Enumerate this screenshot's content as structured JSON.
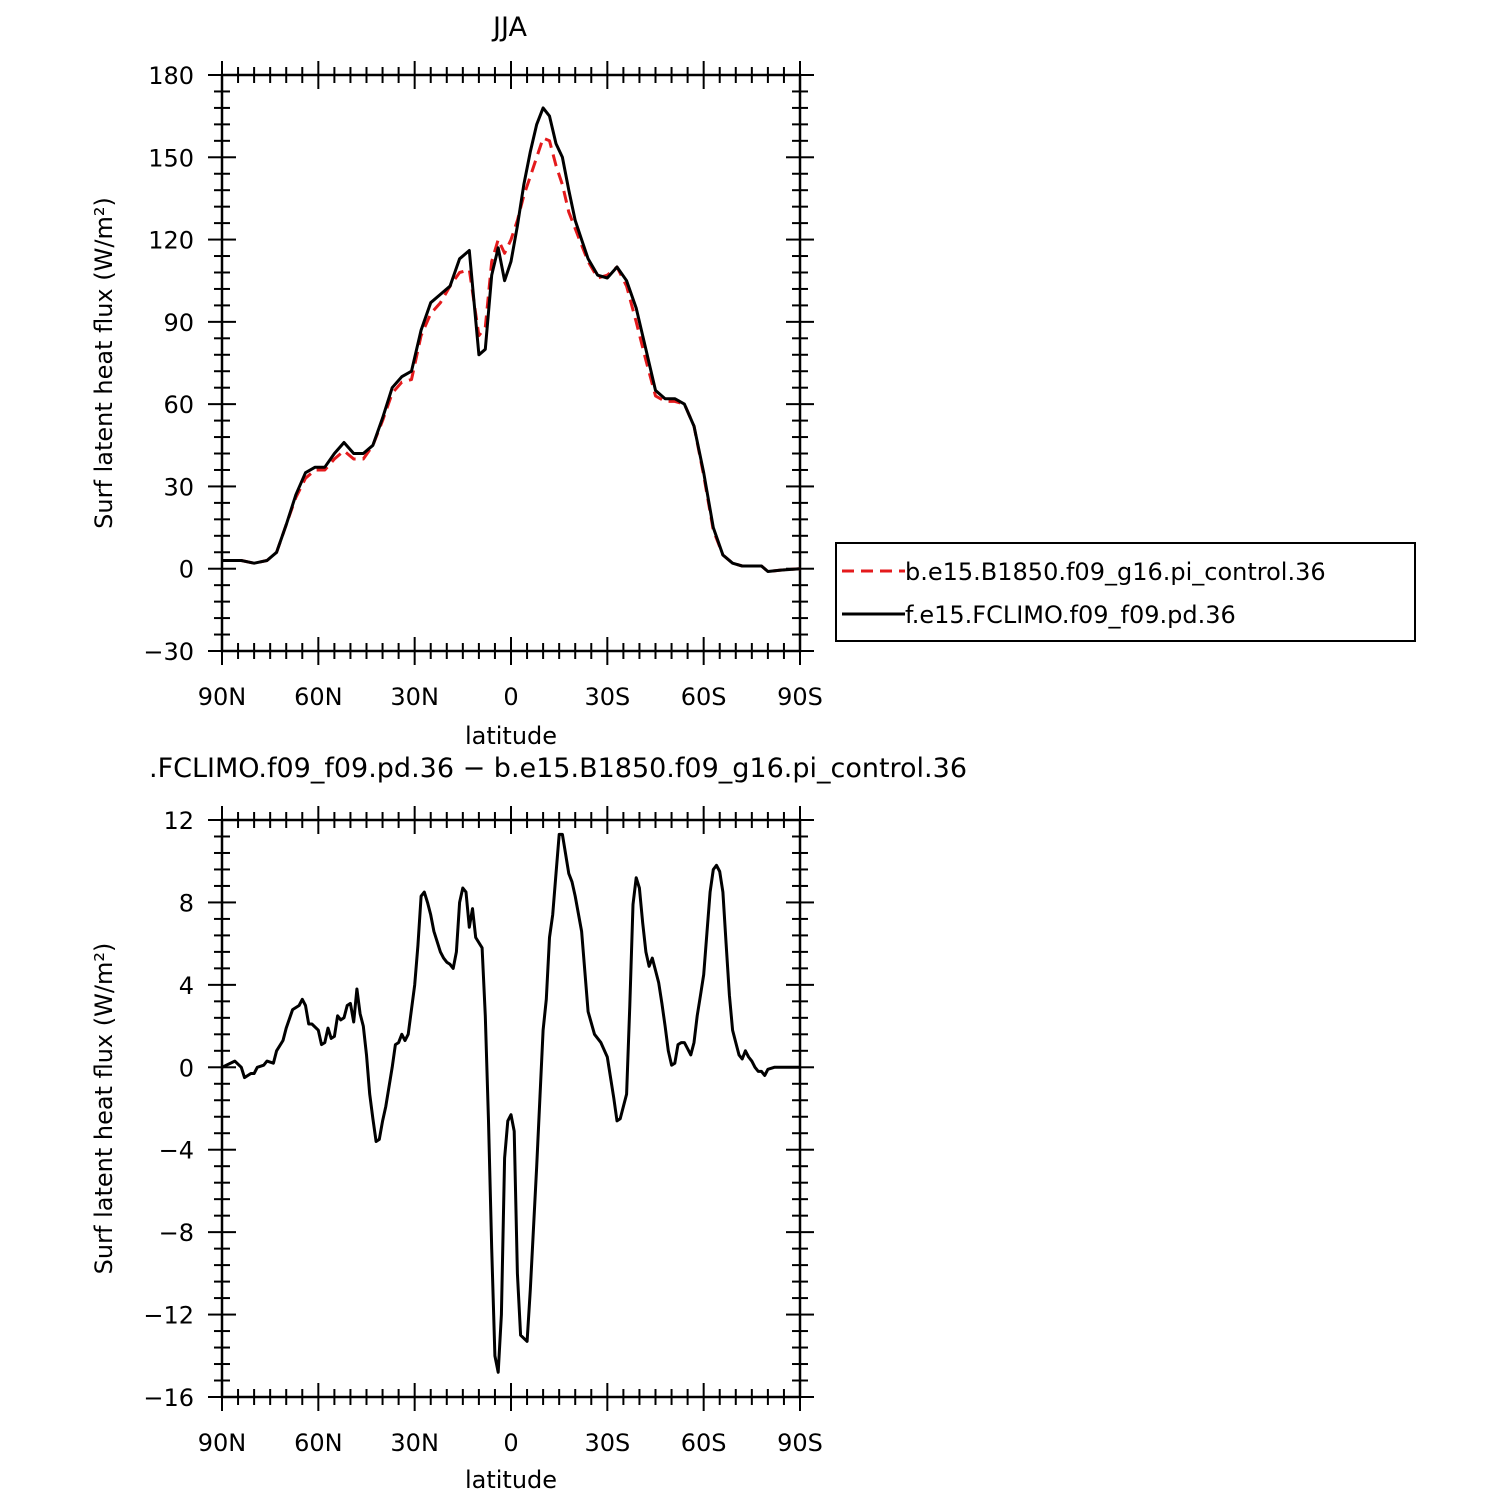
{
  "chart_data": [
    {
      "type": "line",
      "title": "JJA",
      "xlabel": "latitude",
      "ylabel": "Surf latent heat flux (W/m²)",
      "xlim": [
        90,
        -90
      ],
      "ylim": [
        -30,
        180
      ],
      "x_ticks": [
        90,
        60,
        30,
        0,
        -30,
        -60,
        -90
      ],
      "x_tick_labels": [
        "90N",
        "60N",
        "30N",
        "0",
        "30S",
        "60S",
        "90S"
      ],
      "y_ticks": [
        -30,
        0,
        30,
        60,
        90,
        120,
        150,
        180
      ],
      "y_tick_labels": [
        "−30",
        "0",
        "30",
        "60",
        "90",
        "120",
        "150",
        "180"
      ],
      "grid": false,
      "legend": {
        "placement": "outside-right"
      },
      "series": [
        {
          "name": "b.e15.B1850.f09_g16.pi_control.36",
          "color": "#e41a1c",
          "style": "dashed",
          "x": [
            90,
            84,
            80,
            76,
            73,
            70,
            67,
            64,
            61,
            58,
            55,
            52,
            49,
            46,
            43,
            40,
            37,
            34,
            31,
            28,
            25,
            22,
            19,
            16,
            13,
            10,
            8,
            6,
            4,
            2,
            0,
            -2,
            -4,
            -6,
            -8,
            -10,
            -12,
            -14,
            -16,
            -18,
            -20,
            -22,
            -24,
            -27,
            -30,
            -33,
            -36,
            -39,
            -42,
            -45,
            -48,
            -51,
            -54,
            -57,
            -60,
            -63,
            -66,
            -69,
            -72,
            -75,
            -78,
            -80,
            -84,
            -90
          ],
          "values": [
            3,
            3,
            2,
            3,
            6,
            16,
            26,
            33,
            36,
            36,
            40,
            43,
            40,
            40,
            45,
            54,
            64,
            68,
            69,
            85,
            93,
            97,
            103,
            108,
            109,
            85,
            88,
            112,
            120,
            115,
            120,
            127,
            136,
            143,
            150,
            157,
            156,
            147,
            140,
            130,
            124,
            118,
            112,
            106,
            107,
            110,
            103,
            90,
            76,
            63,
            61,
            61,
            60,
            52,
            34,
            14,
            5,
            2,
            1,
            1,
            1,
            -1,
            -0.5,
            0
          ]
        },
        {
          "name": "f.e15.FCLIMO.f09_f09.pd.36",
          "color": "#000000",
          "style": "solid",
          "x": [
            90,
            84,
            80,
            76,
            73,
            70,
            67,
            64,
            61,
            58,
            55,
            52,
            49,
            46,
            43,
            40,
            37,
            34,
            31,
            28,
            25,
            22,
            19,
            16,
            13,
            10,
            8,
            6,
            4,
            2,
            0,
            -2,
            -4,
            -6,
            -8,
            -10,
            -12,
            -14,
            -16,
            -18,
            -20,
            -22,
            -24,
            -27,
            -30,
            -33,
            -36,
            -39,
            -42,
            -45,
            -48,
            -51,
            -54,
            -57,
            -60,
            -63,
            -66,
            -69,
            -72,
            -75,
            -78,
            -80,
            -84,
            -90
          ],
          "values": [
            3,
            3,
            2,
            3,
            6,
            16,
            27,
            35,
            37,
            37,
            42,
            46,
            42,
            42,
            45,
            55,
            66,
            70,
            72,
            87,
            97,
            100,
            103,
            113,
            116,
            78,
            80,
            107,
            117,
            105,
            112,
            125,
            140,
            152,
            162,
            168,
            165,
            155,
            150,
            138,
            127,
            120,
            113,
            107,
            106,
            110,
            105,
            95,
            80,
            65,
            62,
            62,
            60,
            52,
            35,
            15,
            5,
            2,
            1,
            1,
            1,
            -1,
            -0.5,
            0
          ]
        }
      ]
    },
    {
      "type": "line",
      "title": ".FCLIMO.f09_f09.pd.36 − b.e15.B1850.f09_g16.pi_control.36",
      "xlabel": "latitude",
      "ylabel": "Surf latent heat flux (W/m²)",
      "xlim": [
        90,
        -90
      ],
      "ylim": [
        -16,
        12
      ],
      "x_ticks": [
        90,
        60,
        30,
        0,
        -30,
        -60,
        -90
      ],
      "x_tick_labels": [
        "90N",
        "60N",
        "30N",
        "0",
        "30S",
        "60S",
        "90S"
      ],
      "y_ticks": [
        -16,
        -12,
        -8,
        -4,
        0,
        4,
        8,
        12
      ],
      "y_tick_labels": [
        "−16",
        "−12",
        "−8",
        "−4",
        "0",
        "4",
        "8",
        "12"
      ],
      "grid": false,
      "series": [
        {
          "color": "#000000",
          "style": "solid",
          "x": [
            90,
            86,
            84,
            83,
            81,
            80,
            79,
            77,
            76,
            74,
            73,
            71,
            70,
            68,
            66,
            65,
            64,
            63,
            62,
            60,
            59,
            58,
            57,
            56,
            55,
            54,
            53,
            52,
            51,
            50,
            49,
            48,
            47,
            46,
            45,
            44,
            43,
            42,
            41,
            40,
            39,
            37,
            36,
            35,
            34,
            33,
            32,
            30,
            29,
            28,
            27,
            26,
            25,
            24,
            22,
            21,
            20,
            19,
            18,
            17,
            16,
            15,
            14,
            13,
            12,
            11,
            9,
            8,
            7,
            6,
            5,
            4,
            3,
            2,
            1,
            0,
            -1,
            -2,
            -3,
            -5,
            -6,
            -8,
            -9,
            -10,
            -11,
            -12,
            -13,
            -14,
            -15,
            -16,
            -18,
            -19,
            -20,
            -22,
            -24,
            -26,
            -28,
            -30,
            -32,
            -33,
            -34,
            -36,
            -37,
            -38,
            -39,
            -40,
            -41,
            -42,
            -43,
            -44,
            -45,
            -46,
            -47,
            -48,
            -49,
            -50,
            -51,
            -52,
            -53,
            -54,
            -55,
            -56,
            -57,
            -58,
            -59,
            -60,
            -61,
            -62,
            -63,
            -64,
            -65,
            -66,
            -67,
            -68,
            -69,
            -70,
            -71,
            -72,
            -73,
            -74,
            -75,
            -76,
            -77,
            -78,
            -79,
            -80,
            -82,
            -85,
            -90
          ],
          "values": [
            0,
            0.3,
            0,
            -0.5,
            -0.3,
            -0.3,
            0,
            0.1,
            0.3,
            0.2,
            0.8,
            1.3,
            1.9,
            2.8,
            3,
            3.3,
            3,
            2.1,
            2.1,
            1.8,
            1.1,
            1.2,
            1.9,
            1.4,
            1.5,
            2.5,
            2.3,
            2.4,
            3,
            3.1,
            2.2,
            3.8,
            2.6,
            2,
            0.6,
            -1.3,
            -2.5,
            -3.6,
            -3.5,
            -2.6,
            -1.9,
            0,
            1.1,
            1.2,
            1.6,
            1.3,
            1.6,
            4,
            5.9,
            8.3,
            8.5,
            8,
            7.4,
            6.6,
            5.6,
            5.3,
            5.1,
            5,
            4.8,
            5.6,
            8,
            8.7,
            8.5,
            6.8,
            7.7,
            6.3,
            5.8,
            2.5,
            -2.6,
            -8.8,
            -14,
            -14.8,
            -12,
            -4.4,
            -2.6,
            -2.3,
            -3.1,
            -10,
            -13,
            -13.3,
            -10.8,
            -4.8,
            -1.5,
            1.8,
            3.3,
            6.3,
            7.4,
            9.4,
            11.3,
            11.3,
            9.4,
            9,
            8.3,
            6.6,
            2.7,
            1.6,
            1.2,
            0.5,
            -1.5,
            -2.6,
            -2.5,
            -1.3,
            3,
            7.9,
            9.2,
            8.7,
            7,
            5.6,
            4.9,
            5.3,
            4.7,
            4.1,
            3.1,
            2,
            0.8,
            0.1,
            0.2,
            1.1,
            1.2,
            1.2,
            0.9,
            0.6,
            1.2,
            2.5,
            3.5,
            4.5,
            6.5,
            8.5,
            9.6,
            9.8,
            9.5,
            8.5,
            6,
            3.5,
            1.8,
            1.2,
            0.6,
            0.4,
            0.8,
            0.5,
            0.3,
            0,
            -0.2,
            -0.2,
            -0.4,
            -0.1,
            0,
            0,
            0
          ]
        }
      ]
    }
  ]
}
